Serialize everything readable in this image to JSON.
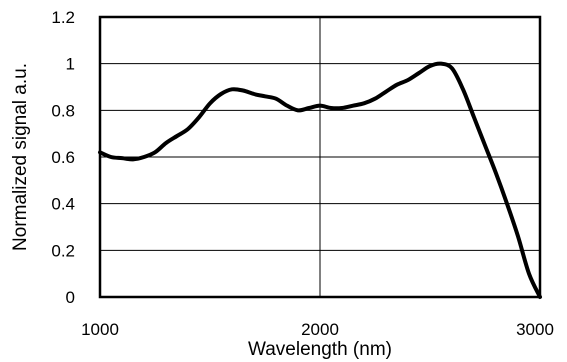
{
  "chart_data": {
    "type": "line",
    "title": "",
    "xlabel": "Wavelength (nm)",
    "ylabel": "Normalized signal a.u.",
    "xlim": [
      1000,
      3000
    ],
    "ylim": [
      0,
      1.2
    ],
    "x_ticks": [
      1000,
      2000,
      3000
    ],
    "x_tick_labels": [
      "1000",
      "2000",
      "3000"
    ],
    "y_ticks": [
      0,
      0.2,
      0.4,
      0.6,
      0.8,
      1.0,
      1.2
    ],
    "y_tick_labels": [
      "0",
      "0.2",
      "0.4",
      "0.6",
      "0.8",
      "1",
      "1.2"
    ],
    "grid": true,
    "legend": "none",
    "line_color": "#000000",
    "series": [
      {
        "x": [
          1000,
          1050,
          1100,
          1150,
          1200,
          1250,
          1300,
          1350,
          1400,
          1450,
          1500,
          1550,
          1600,
          1650,
          1700,
          1750,
          1800,
          1850,
          1900,
          1950,
          2000,
          2050,
          2100,
          2150,
          2200,
          2250,
          2300,
          2350,
          2400,
          2450,
          2500,
          2550,
          2600,
          2650,
          2700,
          2750,
          2800,
          2850,
          2900,
          2950,
          3000
        ],
        "y": [
          0.62,
          0.6,
          0.595,
          0.59,
          0.6,
          0.62,
          0.66,
          0.69,
          0.72,
          0.77,
          0.83,
          0.87,
          0.89,
          0.885,
          0.87,
          0.86,
          0.85,
          0.82,
          0.8,
          0.81,
          0.82,
          0.81,
          0.81,
          0.82,
          0.83,
          0.85,
          0.88,
          0.91,
          0.93,
          0.96,
          0.99,
          1.0,
          0.98,
          0.89,
          0.77,
          0.65,
          0.53,
          0.4,
          0.26,
          0.1,
          0.0
        ]
      }
    ]
  }
}
